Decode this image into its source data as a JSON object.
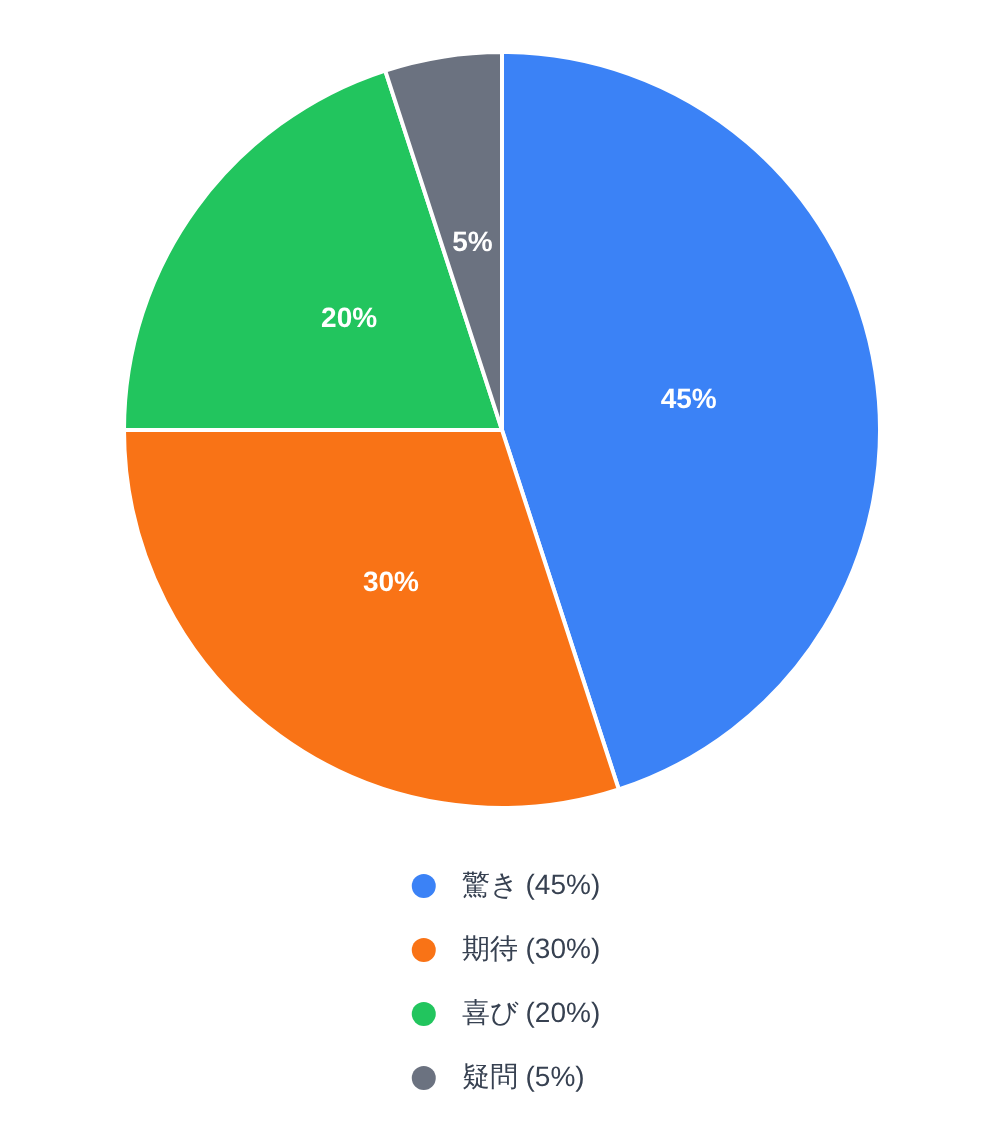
{
  "chart_data": {
    "type": "pie",
    "categories": [
      "驚き (45%)",
      "期待 (30%)",
      "喜び (20%)",
      "疑問 (5%)"
    ],
    "values": [
      45,
      30,
      20,
      5
    ],
    "colors": [
      "#3b82f6",
      "#f97316",
      "#22c55e",
      "#6b7280"
    ],
    "value_labels": [
      "45%",
      "30%",
      "20%",
      "5%"
    ],
    "legend": "bottom"
  }
}
